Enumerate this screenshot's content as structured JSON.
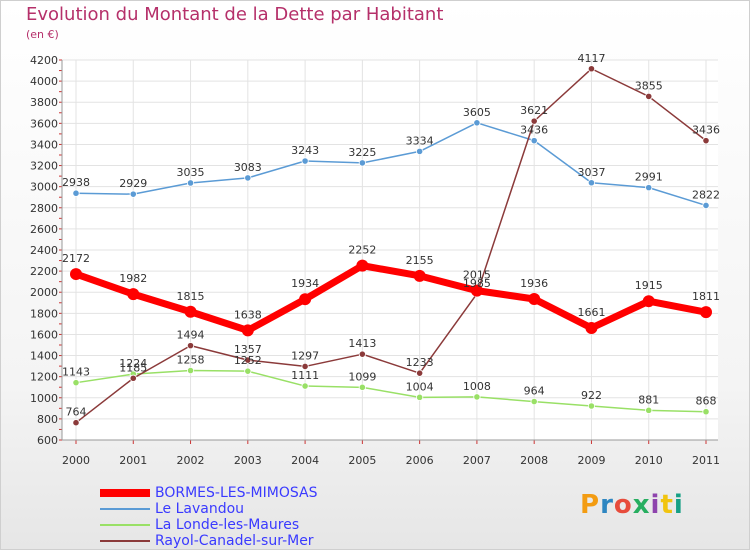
{
  "title": "Evolution du Montant de la Dette par Habitant",
  "subtitle": "(en €)",
  "logo": {
    "text": "Proxiti",
    "colors": [
      "#f39c12",
      "#2e86c1",
      "#e74c3c",
      "#27ae60",
      "#8e44ad",
      "#f1c40f",
      "#16a085"
    ]
  },
  "chart_data": {
    "type": "line",
    "x": [
      "2000",
      "2001",
      "2002",
      "2003",
      "2004",
      "2005",
      "2006",
      "2007",
      "2008",
      "2009",
      "2010",
      "2011"
    ],
    "ylim": [
      600,
      4200
    ],
    "yticks": [
      "600",
      "800",
      "1000",
      "1200",
      "1400",
      "1600",
      "1800",
      "2000",
      "2200",
      "2400",
      "2600",
      "2800",
      "3000",
      "3200",
      "3400",
      "3600",
      "3800",
      "4000",
      "4200"
    ],
    "grid": true,
    "legend_position": "bottom-left",
    "series": [
      {
        "name": "BORMES-LES-MIMOSAS",
        "color": "#ff0000",
        "values": [
          2172,
          1982,
          1815,
          1638,
          1934,
          2252,
          2155,
          2015,
          1936,
          1661,
          1915,
          1811
        ]
      },
      {
        "name": "Le Lavandou",
        "color": "#5b9bd5",
        "values": [
          2938,
          2929,
          3035,
          3083,
          3243,
          3225,
          3334,
          3605,
          3436,
          3037,
          2991,
          2822
        ]
      },
      {
        "name": "La Londe-les-Maures",
        "color": "#99e066",
        "values": [
          1143,
          1224,
          1258,
          1252,
          1111,
          1099,
          1004,
          1008,
          964,
          922,
          881,
          868
        ]
      },
      {
        "name": "Rayol-Canadel-sur-Mer",
        "color": "#8b3a3a",
        "values": [
          764,
          1185,
          1494,
          1357,
          1297,
          1413,
          1233,
          1985,
          3621,
          4117,
          3855,
          3436
        ]
      }
    ]
  }
}
